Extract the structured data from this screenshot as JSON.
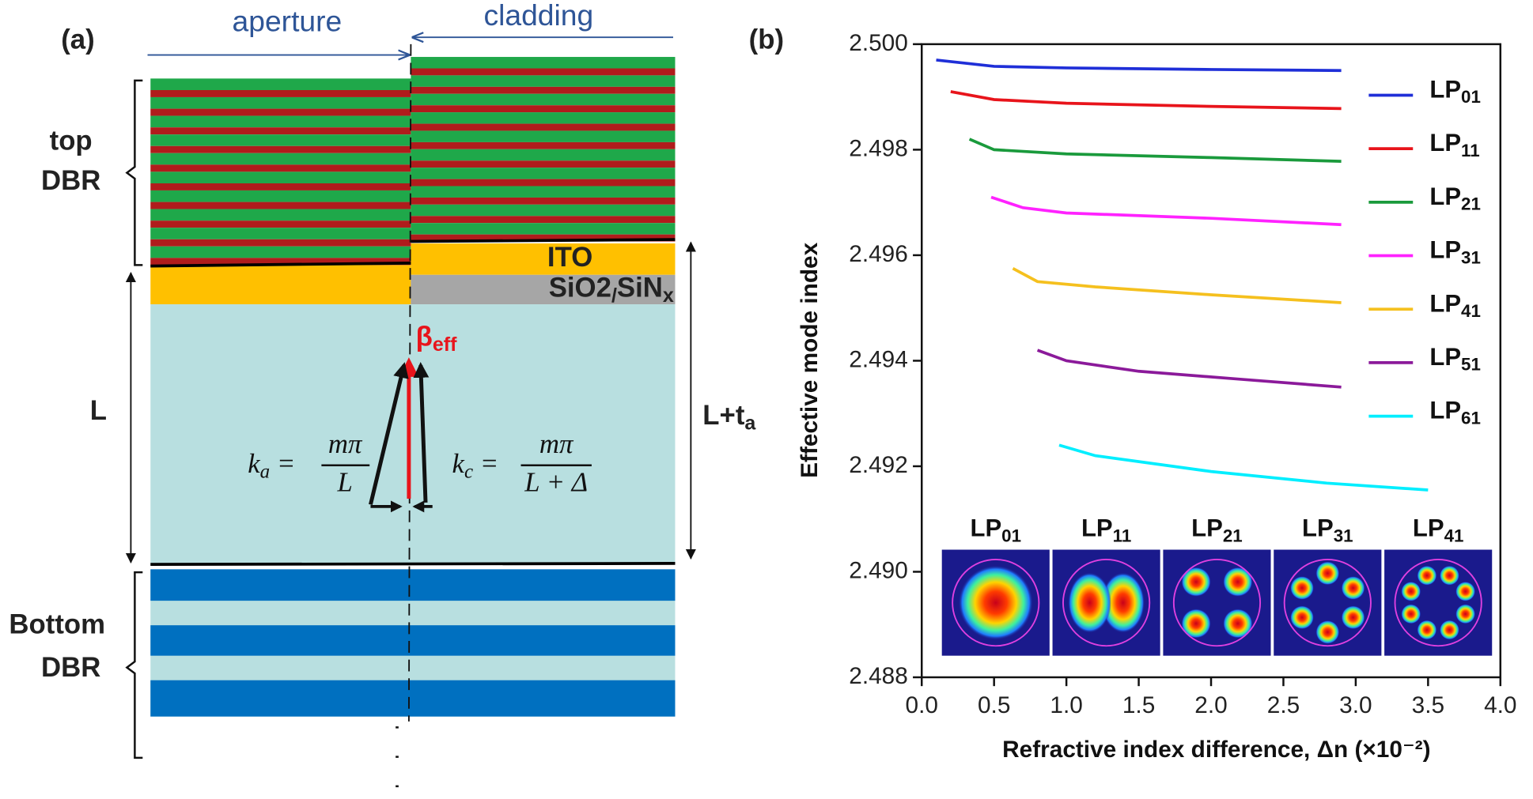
{
  "diagram": {
    "panel_label": "(a)",
    "aperture": "aperture",
    "cladding": "cladding",
    "top_dbr": [
      "top",
      "DBR"
    ],
    "ito": "ITO",
    "oxide": "SiO2/SiNx",
    "beta": "βeff",
    "cavity_a": "L",
    "cavity_c": "L+ta",
    "eq_a": {
      "lhs": "ka =",
      "num": "mπ",
      "den": "L"
    },
    "eq_c": {
      "lhs": "kc =",
      "num": "mπ",
      "den": "L + Δ"
    },
    "bottom_dbr": [
      "Bottom",
      "DBR"
    ]
  },
  "chart_data": {
    "type": "line",
    "panel_label": "(b)",
    "y_label": "Effective mode index",
    "x_label": "Refractive index difference, Δn (×10⁻²)",
    "xlim": [
      0,
      4.0
    ],
    "ylim": [
      2.488,
      2.5
    ],
    "xticks": [
      {
        "value": 0,
        "label": "0.0"
      },
      0.5,
      {
        "value": 1,
        "label": "1.0"
      },
      1.5,
      {
        "value": 2,
        "label": "2.0"
      },
      2.5,
      {
        "value": 3,
        "label": "3.0"
      },
      3.5,
      {
        "value": 4,
        "label": "4.0"
      }
    ],
    "yticks": [
      2.488,
      {
        "value": 2.49,
        "label": "2.490"
      },
      2.492,
      2.494,
      2.496,
      2.498,
      {
        "value": 2.5,
        "label": "2.500"
      }
    ],
    "legend": "right",
    "series": [
      {
        "name": "LP01",
        "color": "#1f2fd8",
        "x": [
          0.1,
          0.5,
          1,
          2,
          2.9
        ],
        "values": [
          2.4997,
          2.49958,
          2.49955,
          2.49952,
          2.4995
        ]
      },
      {
        "name": "LP11",
        "color": "#e8141b",
        "x": [
          0.2,
          0.5,
          1,
          2,
          2.9
        ],
        "values": [
          2.4991,
          2.49895,
          2.49888,
          2.49882,
          2.49878
        ]
      },
      {
        "name": "LP21",
        "color": "#1a9a3c",
        "x": [
          0.33,
          0.5,
          1,
          2,
          2.9
        ],
        "values": [
          2.4982,
          2.498,
          2.49792,
          2.49785,
          2.49778
        ]
      },
      {
        "name": "LP31",
        "color": "#ff22ff",
        "x": [
          0.48,
          0.7,
          1,
          2,
          2.9
        ],
        "values": [
          2.4971,
          2.4969,
          2.4968,
          2.4967,
          2.49658
        ]
      },
      {
        "name": "LP41",
        "color": "#f5c01e",
        "x": [
          0.63,
          0.8,
          1.2,
          2,
          2.9
        ],
        "values": [
          2.49575,
          2.4955,
          2.4954,
          2.49525,
          2.4951
        ]
      },
      {
        "name": "LP51",
        "color": "#8b1a9a",
        "x": [
          0.8,
          1,
          1.5,
          2.2,
          2.9
        ],
        "values": [
          2.4942,
          2.494,
          2.4938,
          2.49365,
          2.4935
        ]
      },
      {
        "name": "LP61",
        "color": "#00eeff",
        "x": [
          0.95,
          1.2,
          2,
          2.8,
          3.5
        ],
        "values": [
          2.4924,
          2.4922,
          2.4919,
          2.49168,
          2.49155
        ]
      }
    ]
  }
}
